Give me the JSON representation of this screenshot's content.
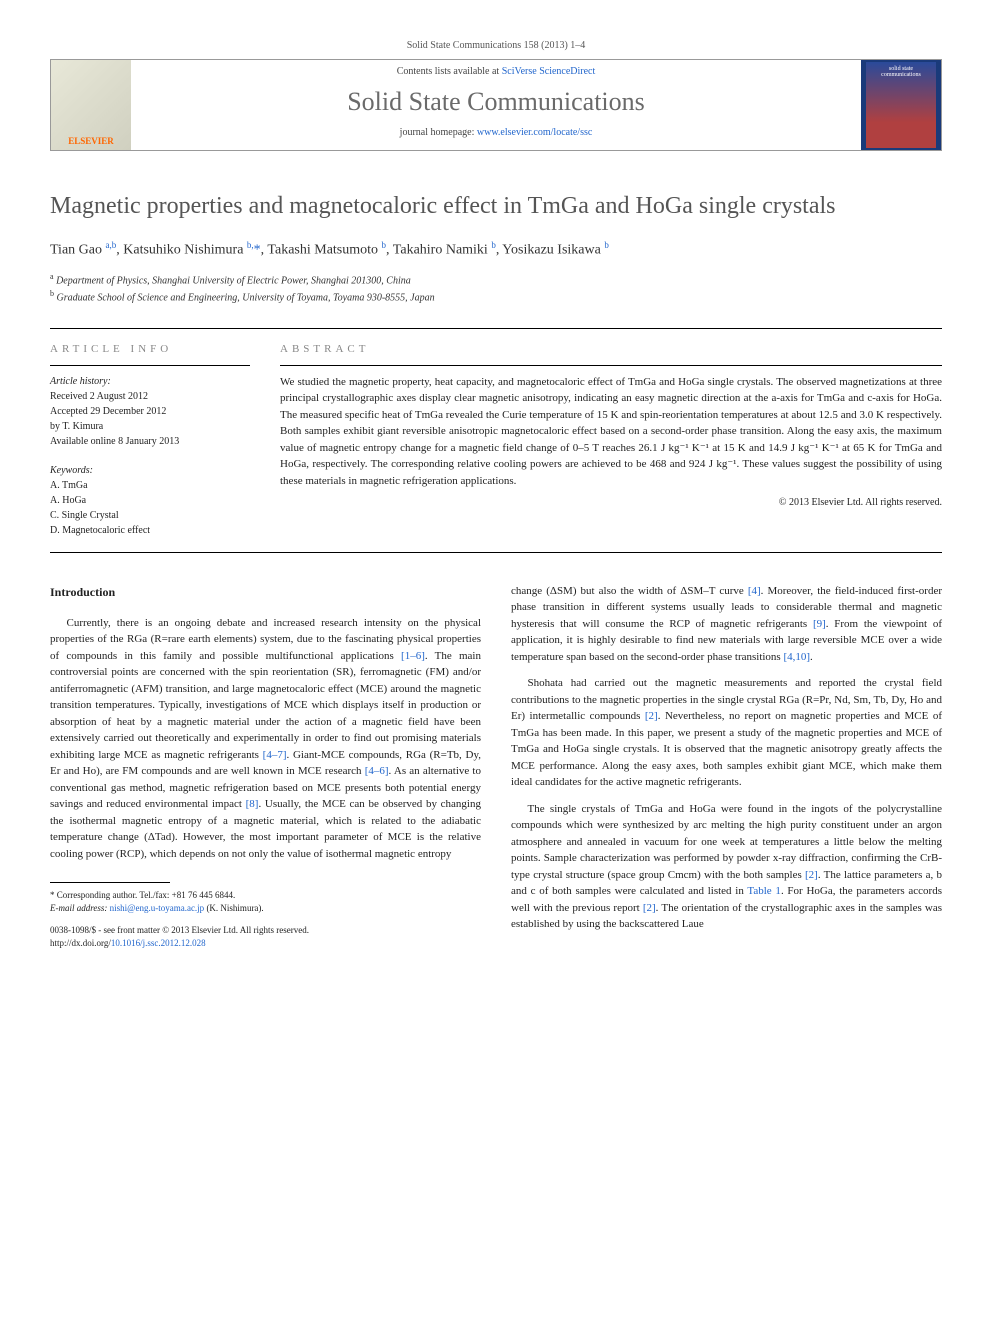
{
  "header_bar": "Solid State Communications 158 (2013) 1–4",
  "banner": {
    "contents_prefix": "Contents lists available at ",
    "contents_link": "SciVerse ScienceDirect",
    "journal_name": "Solid State Communications",
    "homepage_prefix": "journal homepage: ",
    "homepage_link": "www.elsevier.com/locate/ssc",
    "elsevier_label": "ELSEVIER",
    "cover_text": "solid state communications"
  },
  "title": "Magnetic properties and magnetocaloric effect in TmGa and HoGa single crystals",
  "authors_html": "Tian Gao <span class='sup'>a,b</span>, Katsuhiko Nishimura <span class='sup'>b,</span><span class='star'>*</span>, Takashi Matsumoto <span class='sup'>b</span>, Takahiro Namiki <span class='sup'>b</span>, Yosikazu Isikawa <span class='sup'>b</span>",
  "affiliations": {
    "a": "Department of Physics, Shanghai University of Electric Power, Shanghai 201300, China",
    "b": "Graduate School of Science and Engineering, University of Toyama, Toyama 930-8555, Japan"
  },
  "article_info": {
    "label": "ARTICLE INFO",
    "history_label": "Article history:",
    "received": "Received 2 August 2012",
    "accepted": "Accepted 29 December 2012",
    "editor": "by T. Kimura",
    "online": "Available online 8 January 2013",
    "keywords_label": "Keywords:",
    "keywords": [
      "A. TmGa",
      "A. HoGa",
      "C. Single Crystal",
      "D. Magnetocaloric effect"
    ]
  },
  "abstract": {
    "label": "ABSTRACT",
    "text": "We studied the magnetic property, heat capacity, and magnetocaloric effect of TmGa and HoGa single crystals. The observed magnetizations at three principal crystallographic axes display clear magnetic anisotropy, indicating an easy magnetic direction at the a-axis for TmGa and c-axis for HoGa. The measured specific heat of TmGa revealed the Curie temperature of 15 K and spin-reorientation temperatures at about 12.5 and 3.0 K respectively. Both samples exhibit giant reversible anisotropic magnetocaloric effect based on a second-order phase transition. Along the easy axis, the maximum value of magnetic entropy change for a magnetic field change of 0–5 T reaches 26.1 J kg⁻¹ K⁻¹ at 15 K and 14.9 J kg⁻¹ K⁻¹ at 65 K for TmGa and HoGa, respectively. The corresponding relative cooling powers are achieved to be 468 and 924 J kg⁻¹. These values suggest the possibility of using these materials in magnetic refrigeration applications.",
    "copyright": "© 2013 Elsevier Ltd. All rights reserved."
  },
  "intro": {
    "heading": "Introduction",
    "para1": "Currently, there is an ongoing debate and increased research intensity on the physical properties of the RGa (R=rare earth elements) system, due to the fascinating physical properties of compounds in this family and possible multifunctional applications [1–6]. The main controversial points are concerned with the spin reorientation (SR), ferromagnetic (FM) and/or antiferromagnetic (AFM) transition, and large magnetocaloric effect (MCE) around the magnetic transition temperatures. Typically, investigations of MCE which displays itself in production or absorption of heat by a magnetic material under the action of a magnetic field have been extensively carried out theoretically and experimentally in order to find out promising materials exhibiting large MCE as magnetic refrigerants [4–7]. Giant-MCE compounds, RGa (R=Tb, Dy, Er and Ho), are FM compounds and are well known in MCE research [4–6]. As an alternative to conventional gas method, magnetic refrigeration based on MCE presents both potential energy savings and reduced environmental impact [8]. Usually, the MCE can be observed by changing the isothermal magnetic entropy of a magnetic material, which is related to the adiabatic temperature change (ΔTad). However, the most important parameter of MCE is the relative cooling power (RCP), which depends on not only the value of isothermal magnetic entropy",
    "para2": "change (ΔSM) but also the width of ΔSM–T curve [4]. Moreover, the field-induced first-order phase transition in different systems usually leads to considerable thermal and magnetic hysteresis that will consume the RCP of magnetic refrigerants [9]. From the viewpoint of application, it is highly desirable to find new materials with large reversible MCE over a wide temperature span based on the second-order phase transitions [4,10].",
    "para3": "Shohata had carried out the magnetic measurements and reported the crystal field contributions to the magnetic properties in the single crystal RGa (R=Pr, Nd, Sm, Tb, Dy, Ho and Er) intermetallic compounds [2]. Nevertheless, no report on magnetic properties and MCE of TmGa has been made. In this paper, we present a study of the magnetic properties and MCE of TmGa and HoGa single crystals. It is observed that the magnetic anisotropy greatly affects the MCE performance. Along the easy axes, both samples exhibit giant MCE, which make them ideal candidates for the active magnetic refrigerants.",
    "para4": "The single crystals of TmGa and HoGa were found in the ingots of the polycrystalline compounds which were synthesized by arc melting the high purity constituent under an argon atmosphere and annealed in vacuum for one week at temperatures a little below the melting points. Sample characterization was performed by powder x-ray diffraction, confirming the CrB-type crystal structure (space group Cmcm) with the both samples [2]. The lattice parameters a, b and c of both samples were calculated and listed in Table 1. For HoGa, the parameters accords well with the previous report [2]. The orientation of the crystallographic axes in the samples was established by using the backscattered Laue"
  },
  "footnote": {
    "corresponding": "* Corresponding author. Tel./fax: +81 76 445 6844.",
    "email_label": "E-mail address: ",
    "email": "nishi@eng.u-toyama.ac.jp",
    "email_name": " (K. Nishimura)."
  },
  "doi": {
    "line1": "0038-1098/$ - see front matter © 2013 Elsevier Ltd. All rights reserved.",
    "line2_prefix": "http://dx.doi.org/",
    "line2_link": "10.1016/j.ssc.2012.12.028"
  },
  "colors": {
    "link": "#2266cc",
    "title_gray": "#555555",
    "label_gray": "#888888"
  }
}
